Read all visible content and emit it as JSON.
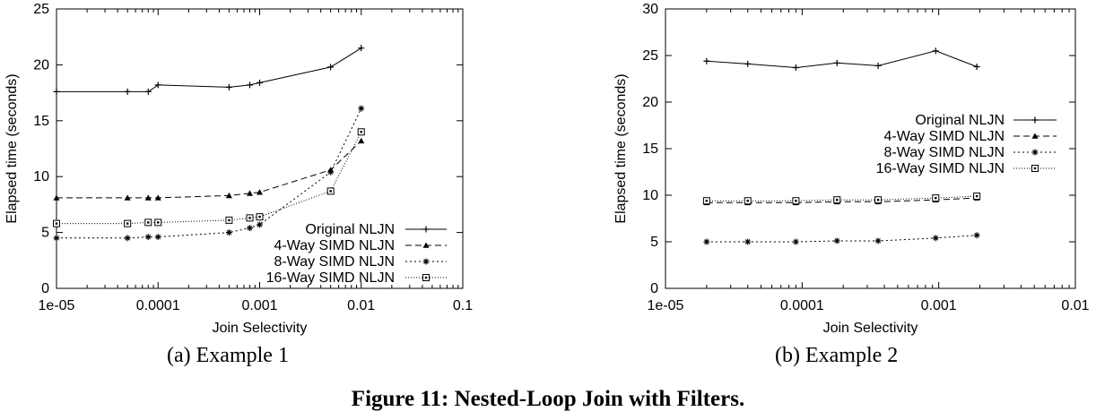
{
  "figure_caption": "Figure 11: Nested-Loop Join with Filters.",
  "subcaptions": [
    "(a) Example 1",
    "(b) Example 2"
  ],
  "chart_data": [
    {
      "type": "line",
      "xscale": "log",
      "xlabel": "Join Selectivity",
      "ylabel": "Elapsed time (seconds)",
      "xlim": [
        1e-05,
        0.1
      ],
      "ylim": [
        0,
        25
      ],
      "xticks": [
        "1e-05",
        "0.0001",
        "0.001",
        "0.01",
        "0.1"
      ],
      "yticks": [
        "0",
        "5",
        "10",
        "15",
        "20",
        "25"
      ],
      "legend_position": "bottom-right",
      "series": [
        {
          "name": "Original NLJN",
          "marker": "plus",
          "dash": "",
          "x": [
            1e-05,
            5e-05,
            8e-05,
            0.0001,
            0.0005,
            0.0008,
            0.001,
            0.005,
            0.01
          ],
          "y": [
            17.6,
            17.6,
            17.6,
            18.2,
            18.0,
            18.2,
            18.4,
            19.8,
            21.5
          ]
        },
        {
          "name": "4-Way SIMD NLJN",
          "marker": "triangle",
          "dash": "7,4",
          "x": [
            1e-05,
            5e-05,
            8e-05,
            0.0001,
            0.0005,
            0.0008,
            0.001,
            0.005,
            0.01
          ],
          "y": [
            8.1,
            8.1,
            8.1,
            8.1,
            8.3,
            8.5,
            8.6,
            10.6,
            13.2
          ]
        },
        {
          "name": "8-Way SIMD NLJN",
          "marker": "star",
          "dash": "2,3",
          "x": [
            1e-05,
            5e-05,
            8e-05,
            0.0001,
            0.0005,
            0.0008,
            0.001,
            0.005,
            0.01
          ],
          "y": [
            4.5,
            4.5,
            4.6,
            4.6,
            5.0,
            5.4,
            5.7,
            10.4,
            16.1
          ]
        },
        {
          "name": "16-Way SIMD NLJN",
          "marker": "square",
          "dash": "1,2",
          "x": [
            1e-05,
            5e-05,
            8e-05,
            0.0001,
            0.0005,
            0.0008,
            0.001,
            0.005,
            0.01
          ],
          "y": [
            5.8,
            5.8,
            5.9,
            5.9,
            6.1,
            6.3,
            6.4,
            8.7,
            14.0
          ]
        }
      ]
    },
    {
      "type": "line",
      "xscale": "log",
      "xlabel": "Join Selectivity",
      "ylabel": "Elapsed time (seconds)",
      "xlim": [
        1e-05,
        0.01
      ],
      "ylim": [
        0,
        30
      ],
      "xticks": [
        "1e-05",
        "0.0001",
        "0.001",
        "0.01"
      ],
      "yticks": [
        "0",
        "5",
        "10",
        "15",
        "20",
        "25",
        "30"
      ],
      "legend_position": "middle-right",
      "series": [
        {
          "name": "Original NLJN",
          "marker": "plus",
          "dash": "",
          "x": [
            2e-05,
            4e-05,
            9e-05,
            0.00018,
            0.00036,
            0.00095,
            0.0019
          ],
          "y": [
            24.4,
            24.1,
            23.7,
            24.2,
            23.9,
            25.5,
            23.8
          ]
        },
        {
          "name": "4-Way SIMD NLJN",
          "marker": "triangle",
          "dash": "7,4",
          "x": [
            2e-05,
            4e-05,
            9e-05,
            0.00018,
            0.00036,
            0.00095,
            0.0019
          ],
          "y": [
            9.2,
            9.2,
            9.2,
            9.3,
            9.3,
            9.5,
            9.7
          ]
        },
        {
          "name": "8-Way SIMD NLJN",
          "marker": "star",
          "dash": "2,3",
          "x": [
            2e-05,
            4e-05,
            9e-05,
            0.00018,
            0.00036,
            0.00095,
            0.0019
          ],
          "y": [
            5.0,
            5.0,
            5.0,
            5.1,
            5.1,
            5.4,
            5.7
          ]
        },
        {
          "name": "16-Way SIMD NLJN",
          "marker": "square",
          "dash": "1,2",
          "x": [
            2e-05,
            4e-05,
            9e-05,
            0.00018,
            0.00036,
            0.00095,
            0.0019
          ],
          "y": [
            9.4,
            9.4,
            9.4,
            9.5,
            9.5,
            9.7,
            9.9
          ]
        }
      ]
    }
  ]
}
